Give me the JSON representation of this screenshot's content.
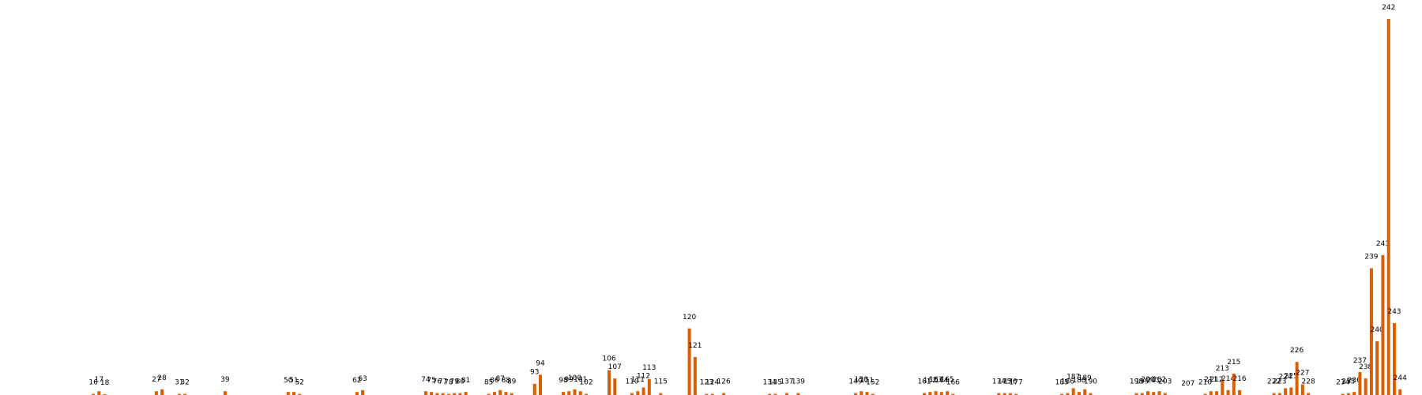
{
  "chart_data": {
    "type": "bar",
    "title": "",
    "xlabel": "",
    "ylabel": "",
    "color": "#d95f02",
    "grid": false,
    "ylim": [
      0,
      100
    ],
    "x": [
      16,
      17,
      18,
      27,
      28,
      31,
      32,
      39,
      50,
      51,
      52,
      62,
      63,
      74,
      75,
      76,
      77,
      78,
      79,
      80,
      81,
      85,
      86,
      87,
      88,
      89,
      93,
      94,
      98,
      99,
      100,
      101,
      102,
      106,
      107,
      110,
      111,
      112,
      113,
      115,
      120,
      121,
      123,
      124,
      126,
      134,
      135,
      137,
      139,
      149,
      150,
      151,
      152,
      161,
      162,
      163,
      164,
      165,
      166,
      174,
      175,
      176,
      177,
      185,
      186,
      187,
      188,
      189,
      190,
      198,
      199,
      200,
      201,
      202,
      203,
      207,
      210,
      211,
      212,
      213,
      214,
      215,
      216,
      222,
      223,
      224,
      225,
      226,
      227,
      228,
      234,
      235,
      236,
      237,
      238,
      239,
      240,
      241,
      242,
      243,
      244
    ],
    "values": [
      0.3,
      1.0,
      0.2,
      1.0,
      1.5,
      0.3,
      0.3,
      1.0,
      0.8,
      0.8,
      0.3,
      0.8,
      1.3,
      1.0,
      0.8,
      0.5,
      0.5,
      0.3,
      0.5,
      0.5,
      0.8,
      0.3,
      0.8,
      1.3,
      0.8,
      0.5,
      3.0,
      5.4,
      0.8,
      1.0,
      1.5,
      1.0,
      0.3,
      6.6,
      4.4,
      0.5,
      1.0,
      2.0,
      4.2,
      0.5,
      17.7,
      10.1,
      0.3,
      0.3,
      0.5,
      0.3,
      0.3,
      0.5,
      0.5,
      0.5,
      1.0,
      0.8,
      0.3,
      0.5,
      0.8,
      1.0,
      0.8,
      1.0,
      0.3,
      0.5,
      0.5,
      0.5,
      0.3,
      0.3,
      0.5,
      1.8,
      0.8,
      1.5,
      0.5,
      0.5,
      0.5,
      1.0,
      0.8,
      1.0,
      0.5,
      0,
      0.3,
      1.0,
      1.0,
      4.0,
      1.3,
      5.7,
      1.3,
      0.5,
      0.5,
      1.8,
      2.0,
      8.8,
      2.8,
      0.5,
      0.3,
      0.5,
      0.8,
      6.1,
      4.4,
      33.7,
      14.3,
      37.2,
      100.0,
      19.1,
      1.5
    ]
  }
}
